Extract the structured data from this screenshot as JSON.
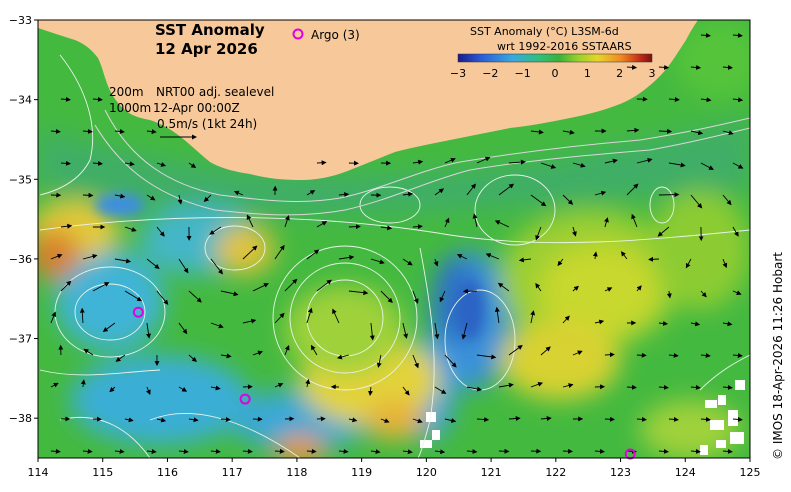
{
  "title": {
    "line1": "SST Anomaly",
    "line2": "12 Apr 2026"
  },
  "argo": {
    "label": "Argo (3)",
    "marker_color": "#e000e0",
    "floats": [
      {
        "lon": 115.55,
        "lat": -36.67
      },
      {
        "lon": 117.2,
        "lat": -37.76
      },
      {
        "lon": 123.15,
        "lat": -38.45
      }
    ]
  },
  "colorbar": {
    "title_line1": "SST Anomaly (°C) L3SM-6d",
    "title_line2": "wrt 1992-2016 SSTAARS",
    "ticks": [
      "−3",
      "−2",
      "−1",
      "0",
      "1",
      "2",
      "3"
    ],
    "colors": [
      "#1a1a8c",
      "#2a5cd8",
      "#3aa8e0",
      "#2fc07a",
      "#39b23a",
      "#9ad12a",
      "#e6d52a",
      "#f08a22",
      "#c02a14",
      "#7a1010"
    ]
  },
  "legend": {
    "line1_depth": "200m",
    "line1_text": "NRT00 adj. sealevel",
    "line2_depth": "1000m",
    "line2_text": "12-Apr 00:00Z",
    "line3": "0.5m/s (1kt 24h)"
  },
  "axes": {
    "x_ticks": [
      "114",
      "115",
      "116",
      "117",
      "118",
      "119",
      "120",
      "121",
      "122",
      "123",
      "124",
      "125"
    ],
    "y_ticks": [
      "−33",
      "−34",
      "−35",
      "−36",
      "−37",
      "−38"
    ],
    "lon_range": [
      114,
      125
    ],
    "lat_range": [
      -38.5,
      -33
    ]
  },
  "copyright": "© IMOS 18-Apr-2026 11:26 Hobart",
  "colors": {
    "land": "#f7c99a",
    "ocean_base": "#44b940",
    "cool": "#3aa0e0",
    "warm": "#e6d23a",
    "hot": "#d9742a"
  }
}
